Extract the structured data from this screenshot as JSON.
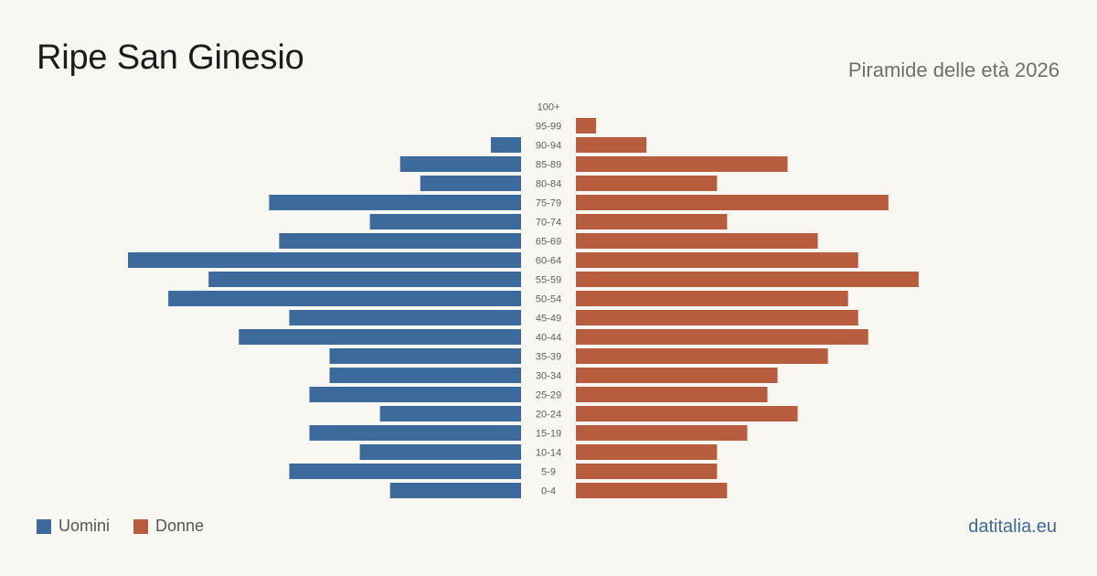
{
  "header": {
    "title": "Ripe San Ginesio",
    "subtitle": "Piramide delle età 2026"
  },
  "legend": {
    "men_label": "Uomini",
    "women_label": "Donne"
  },
  "brand": "datitalia.eu",
  "colors": {
    "men": "#3b6a9b",
    "women": "#b85c3e",
    "background": "#f9f7f2"
  },
  "chart_data": {
    "type": "bar",
    "orientation": "horizontal-pyramid",
    "categories": [
      "100+",
      "95-99",
      "90-94",
      "85-89",
      "80-84",
      "75-79",
      "70-74",
      "65-69",
      "60-64",
      "55-59",
      "50-54",
      "45-49",
      "40-44",
      "35-39",
      "30-34",
      "25-29",
      "20-24",
      "15-19",
      "10-14",
      "5-9",
      "0-4"
    ],
    "series": [
      {
        "name": "Uomini",
        "values": [
          0,
          0,
          3,
          12,
          10,
          25,
          15,
          24,
          39,
          31,
          35,
          23,
          28,
          19,
          19,
          21,
          14,
          21,
          16,
          23,
          13
        ]
      },
      {
        "name": "Donne",
        "values": [
          0,
          2,
          7,
          21,
          14,
          31,
          15,
          24,
          28,
          34,
          27,
          28,
          29,
          25,
          20,
          19,
          22,
          17,
          14,
          14,
          15
        ]
      }
    ],
    "xlim": [
      0,
      39
    ],
    "grid": false,
    "legend_position": "bottom-left"
  }
}
